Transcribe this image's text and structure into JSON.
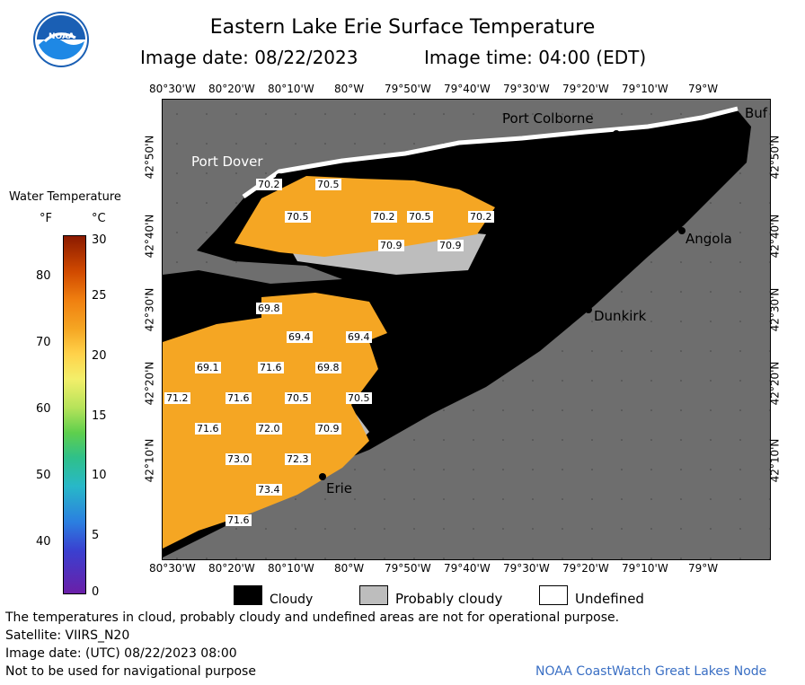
{
  "header": {
    "title": "Eastern Lake Erie Surface Temperature",
    "image_date": "Image date: 08/22/2023",
    "image_time": "Image time: 04:00 (EDT)"
  },
  "logo": {
    "text": "NOAA"
  },
  "colorbar": {
    "title": "Water Temperature",
    "unit_f": "°F",
    "unit_c": "°C",
    "f_ticks": [
      "80",
      "70",
      "60",
      "50",
      "40"
    ],
    "c_ticks": [
      "30",
      "25",
      "20",
      "15",
      "10",
      "5",
      "0"
    ]
  },
  "map": {
    "lon_ticks": [
      "80°30'W",
      "80°20'W",
      "80°10'W",
      "80°W",
      "79°50'W",
      "79°40'W",
      "79°30'W",
      "79°20'W",
      "79°10'W",
      "79°W"
    ],
    "lat_ticks": [
      "42°50'N",
      "42°40'N",
      "42°30'N",
      "42°20'N",
      "42°10'N"
    ],
    "places": {
      "port_dover": "Port Dover",
      "port_colborne": "Port Colborne",
      "buffalo": "Buf",
      "angola": "Angola",
      "dunkirk": "Dunkirk",
      "erie": "Erie"
    },
    "temps": [
      "70.2",
      "70.5",
      "70.5",
      "70.2",
      "70.5",
      "70.2",
      "70.9",
      "70.9",
      "69.8",
      "69.4",
      "69.4",
      "69.1",
      "71.6",
      "69.8",
      "71.2",
      "71.6",
      "70.5",
      "70.5",
      "71.6",
      "72.0",
      "70.9",
      "73.0",
      "72.3",
      "73.4",
      "71.6"
    ]
  },
  "legend": {
    "cloudy": "Cloudy",
    "probably_cloudy": "Probably cloudy",
    "undefined": "Undefined"
  },
  "footer": {
    "disclaimer": "The temperatures in cloud, probably cloudy and undefined areas are not for operational purpose.",
    "satellite": "Satellite: VIIRS_N20",
    "utc_date": "Image date: (UTC) 08/22/2023  08:00",
    "nav": "Not to be used for navigational purpose",
    "credit": "NOAA CoastWatch Great Lakes Node"
  },
  "colors": {
    "land": "#6e6e6e",
    "cloud": "#000000",
    "probably_cloudy": "#bdbdbd",
    "warm_water": "#f5a623",
    "undefined": "#ffffff"
  }
}
